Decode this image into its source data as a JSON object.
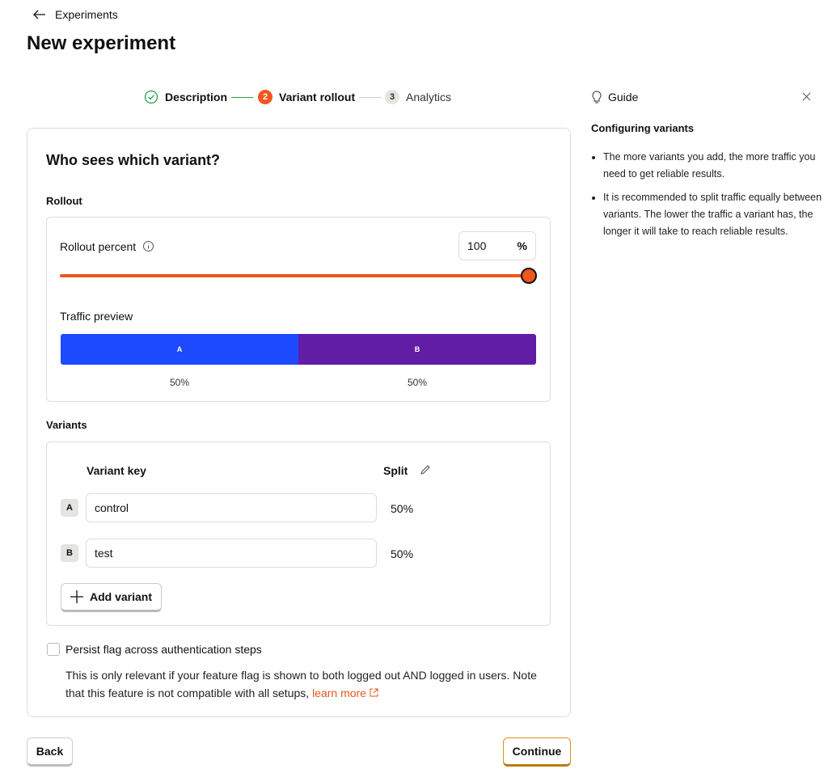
{
  "header": {
    "back_link": "Experiments",
    "title": "New experiment"
  },
  "stepper": {
    "steps": [
      {
        "label": "Description"
      },
      {
        "number": "2",
        "label": "Variant rollout"
      },
      {
        "number": "3",
        "label": "Analytics"
      }
    ]
  },
  "card": {
    "title": "Who sees which variant?",
    "rollout": {
      "section_title": "Rollout",
      "label": "Rollout percent",
      "value": 100,
      "unit": "%",
      "traffic_title": "Traffic preview",
      "traffic": [
        {
          "key": "A",
          "value": 50,
          "label": "50%"
        },
        {
          "key": "B",
          "value": 50,
          "label": "50%"
        }
      ]
    },
    "variants": {
      "section_title": "Variants",
      "columns": [
        "Variant key",
        "Split"
      ],
      "rows": [
        {
          "key": "A",
          "name": "control",
          "split": "50%"
        },
        {
          "key": "B",
          "name": "test",
          "split": "50%"
        }
      ],
      "add_button": "Add variant"
    },
    "persist": {
      "label": "Persist flag across authentication steps",
      "description": "This is only relevant if your feature flag is shown to both logged out AND logged in users. Note that this feature is not compatible with all setups,",
      "link": "learn more"
    }
  },
  "footer": {
    "back": "Back",
    "continue": "Continue"
  },
  "guide": {
    "title": "Guide",
    "heading": "Configuring variants",
    "bullets": [
      "The more variants you add, the more traffic you need to get reliable results.",
      "It is recommended to split traffic equally between variants. The lower the traffic a variant has, the longer it will take to reach reliable results."
    ]
  }
}
